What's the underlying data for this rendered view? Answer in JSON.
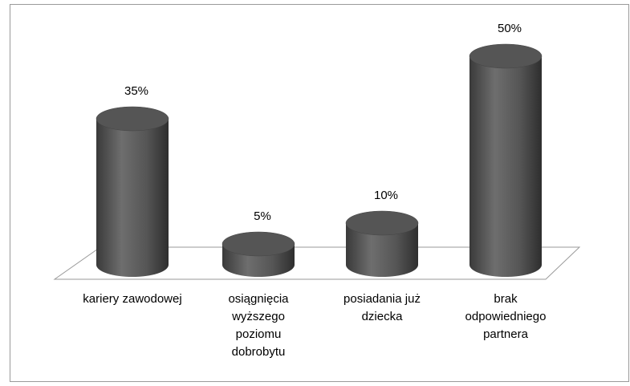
{
  "chart_data": {
    "type": "bar3d",
    "categories": [
      "kariery zawodowej",
      "osiągnięcia wyższego poziomu dobrobytu",
      "posiadania już dziecka",
      "brak odpowiedniego partnera"
    ],
    "values": [
      35,
      5,
      10,
      50
    ],
    "value_labels": [
      "35%",
      "5%",
      "10%",
      "50%"
    ],
    "color": "#555555"
  }
}
